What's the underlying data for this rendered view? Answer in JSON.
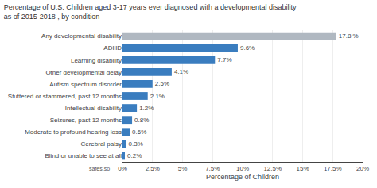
{
  "chart_data": {
    "type": "bar",
    "orientation": "horizontal",
    "title": "Percentage of U.S. Children aged 3-17 years ever diagnosed with a developmental disability",
    "subtitle": "as of 2015-2018 , by condition",
    "x_label": "Percentage of Children",
    "categories": [
      "Blind or unable to see at all",
      "Cerebral palsy",
      "Moderate to profound hearing loss",
      "Seizures, past 12 months",
      "Intellectual disability",
      "Stuttered or stammered, past 12 months",
      "Autism spectrum disorder",
      "Other developmental delay",
      "Learning disability",
      "ADHD",
      "Any developmental disability"
    ],
    "values": [
      0.2,
      0.3,
      0.6,
      0.8,
      1.2,
      2.1,
      2.5,
      4.1,
      7.7,
      9.6,
      17.8
    ],
    "value_labels": [
      "0.2%",
      "0.3%",
      "0.6%",
      "0.8%",
      "1.2%",
      "2.1%",
      "2.5%",
      "4.1%",
      "7.7%",
      "9.6%",
      "17.8 %"
    ],
    "data_labels": true,
    "colors": [
      "#3a7dbf",
      "#3a7dbf",
      "#3a7dbf",
      "#3a7dbf",
      "#3a7dbf",
      "#3a7dbf",
      "#3a7dbf",
      "#3a7dbf",
      "#3a7dbf",
      "#3a7dbf",
      "#b0b8c1"
    ],
    "xlim": [
      0,
      20
    ],
    "xticks": [
      {
        "value": 0,
        "label": "0%"
      },
      {
        "value": 2.5,
        "label": "2.5%"
      },
      {
        "value": 5,
        "label": "5%"
      },
      {
        "value": 7.5,
        "label": "7.5%"
      },
      {
        "value": 10,
        "label": "10%"
      },
      {
        "value": 12.5,
        "label": "12.5%"
      },
      {
        "value": 15,
        "label": "15%"
      },
      {
        "value": 17.5,
        "label": "17.5%"
      },
      {
        "value": 20,
        "label": "20%"
      }
    ],
    "grid": true,
    "annotations": [
      "safes.so"
    ]
  }
}
